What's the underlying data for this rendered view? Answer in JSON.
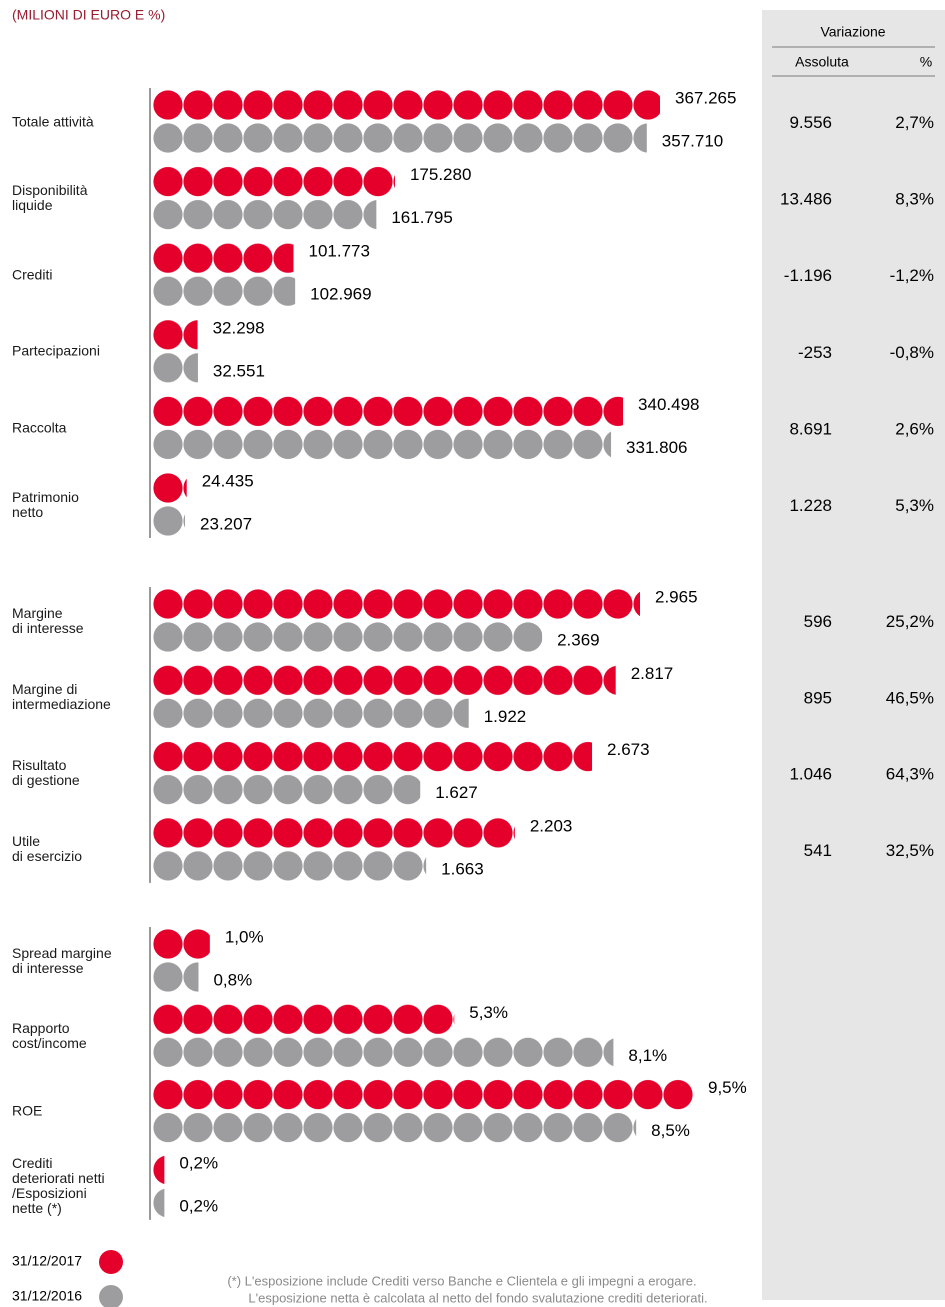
{
  "title": "(MILIONI DI EURO E %)",
  "variation_header": {
    "title": "Variazione",
    "absolute": "Assoluta",
    "percent": "%"
  },
  "chart_data": [
    {
      "type": "pictogram",
      "categories": [
        "Totale attività",
        "Disponibilità\nliquide",
        "Crediti",
        "Partecipazioni",
        "Raccolta",
        "Patrimonio\nnetto"
      ],
      "series": [
        {
          "name": "31/12/2017",
          "color": "#e4002b",
          "values": [
            367265,
            175280,
            101773,
            32298,
            340498,
            24435
          ],
          "value_labels": [
            "367.265",
            "175.280",
            "101.773",
            "32.298",
            "340.498",
            "24.435"
          ]
        },
        {
          "name": "31/12/2016",
          "color": "#9d9d9f",
          "values": [
            357710,
            161795,
            102969,
            32551,
            331806,
            23207
          ],
          "value_labels": [
            "357.710",
            "161.795",
            "102.969",
            "32.551",
            "331.806",
            "23.207"
          ]
        }
      ],
      "change": {
        "absolute": [
          "9.556",
          "13.486",
          "-1.196",
          "-253",
          "8.691",
          "1.228"
        ],
        "percent": [
          "2,7%",
          "8,3%",
          "-1,2%",
          "-0,8%",
          "2,6%",
          "5,3%"
        ]
      }
    },
    {
      "type": "pictogram",
      "categories": [
        "Margine\ndi interesse",
        "Margine di\nintermediazione",
        "Risultato\ndi gestione",
        "Utile\ndi esercizio"
      ],
      "series": [
        {
          "color": "#e4002b",
          "values": [
            2965,
            2817,
            2673,
            2203
          ],
          "value_labels": [
            "2.965",
            "2.817",
            "2.673",
            "2.203"
          ]
        },
        {
          "color": "#9d9d9f",
          "values": [
            2369,
            1922,
            1627,
            1663
          ],
          "value_labels": [
            "2.369",
            "1.922",
            "1.627",
            "1.663"
          ]
        }
      ],
      "change": {
        "absolute": [
          "596",
          "895",
          "1.046",
          "541"
        ],
        "percent": [
          "25,2%",
          "46,5%",
          "64,3%",
          "32,5%"
        ]
      }
    },
    {
      "type": "pictogram",
      "categories": [
        "Spread margine\ndi interesse",
        "Rapporto\ncost/income",
        "ROE",
        "Crediti\ndeteriorati netti\n/Esposizioni\nnette (*)"
      ],
      "series": [
        {
          "color": "#e4002b",
          "values": [
            1.0,
            5.3,
            9.5,
            0.2
          ],
          "value_labels": [
            "1,0%",
            "5,3%",
            "9,5%",
            "0,2%"
          ]
        },
        {
          "color": "#9d9d9f",
          "values": [
            0.8,
            8.1,
            8.5,
            0.2
          ],
          "value_labels": [
            "0,8%",
            "8,1%",
            "8,5%",
            "0,2%"
          ]
        }
      ]
    }
  ],
  "footnote": [
    "(*) L'esposizione include Crediti verso Banche e Clientela e gli impegni a erogare.",
    "L'esposizione netta è calcolata al netto del fondo svalutazione crediti deteriorati."
  ]
}
